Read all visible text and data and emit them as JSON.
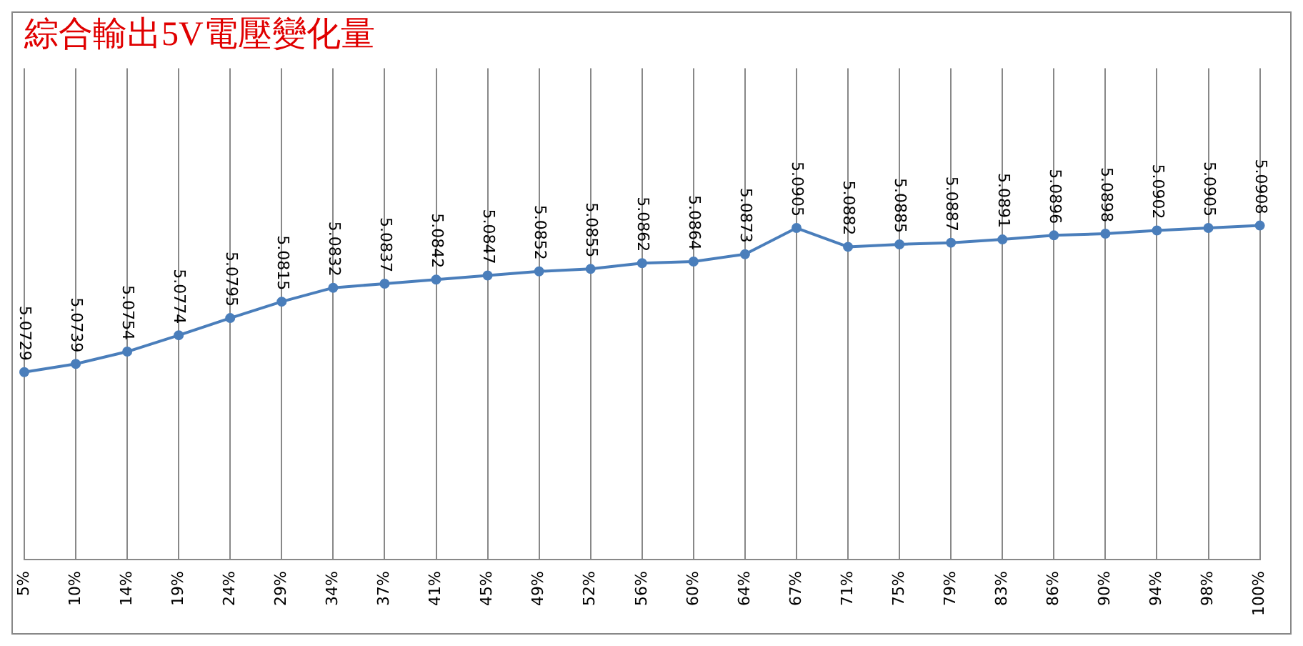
{
  "chart_data": {
    "type": "line",
    "title": "綜合輸出5V電壓變化量",
    "categories": [
      "5%",
      "10%",
      "14%",
      "19%",
      "24%",
      "29%",
      "34%",
      "37%",
      "41%",
      "45%",
      "49%",
      "52%",
      "56%",
      "60%",
      "64%",
      "67%",
      "71%",
      "75%",
      "79%",
      "83%",
      "86%",
      "90%",
      "94%",
      "98%",
      "100%"
    ],
    "series": [
      {
        "color": "#4a7ebb",
        "values": [
          5.0729,
          5.0739,
          5.0754,
          5.0774,
          5.0795,
          5.0815,
          5.0832,
          5.0837,
          5.0842,
          5.0847,
          5.0852,
          5.0855,
          5.0862,
          5.0864,
          5.0873,
          5.0905,
          5.0882,
          5.0885,
          5.0887,
          5.0891,
          5.0896,
          5.0898,
          5.0902,
          5.0905,
          5.0908
        ]
      }
    ],
    "data_labels": true,
    "grid": "x",
    "marker": "circle",
    "legend": false
  }
}
